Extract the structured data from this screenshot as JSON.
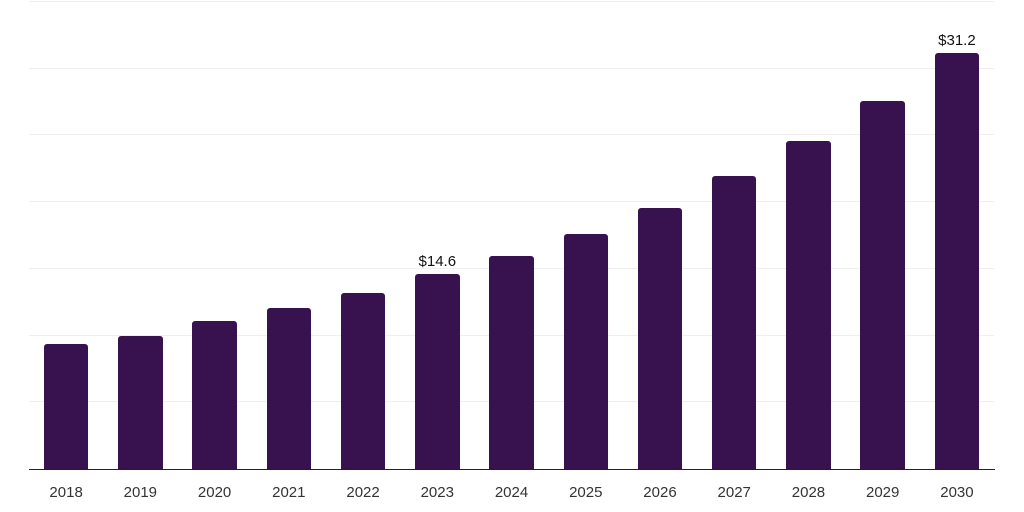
{
  "chart_data": {
    "type": "bar",
    "title": "",
    "xlabel": "",
    "ylabel": "",
    "categories": [
      "2018",
      "2019",
      "2020",
      "2021",
      "2022",
      "2023",
      "2024",
      "2025",
      "2026",
      "2027",
      "2028",
      "2029",
      "2030"
    ],
    "values": [
      9.4,
      10.0,
      11.1,
      12.1,
      13.2,
      14.6,
      16.0,
      17.6,
      19.6,
      22.0,
      24.6,
      27.6,
      31.2
    ],
    "data_labels": {
      "2023": "$14.6",
      "2030": "$31.2"
    },
    "ylim": [
      0,
      35
    ],
    "grid_step": 5,
    "grid_on": true,
    "y_tick_labels_visible": false,
    "legend": "none",
    "colors": {
      "bar_fill": "#38124e",
      "grid_line": "#efefef",
      "axis_line": "#222222",
      "value_label_text": "#111111",
      "tick_label_text": "#333333",
      "background": "#ffffff"
    }
  }
}
